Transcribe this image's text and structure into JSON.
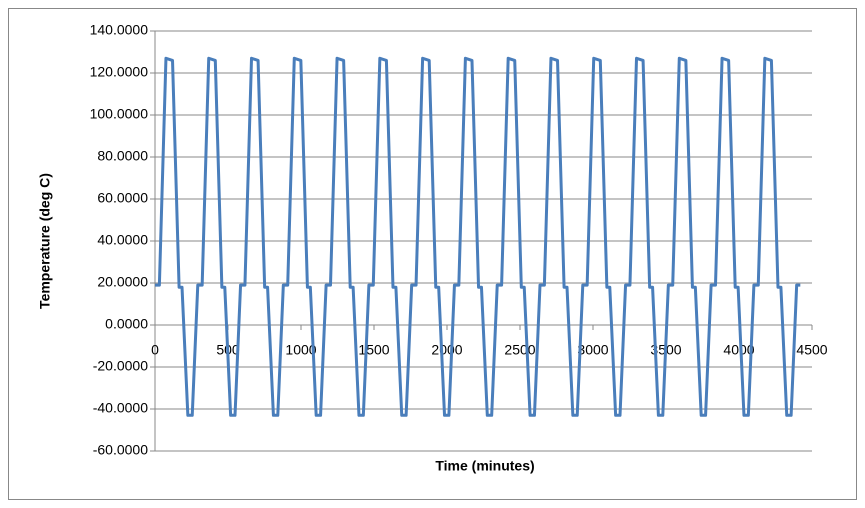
{
  "chart_data": {
    "type": "line",
    "xlabel": "Time (minutes)",
    "ylabel": "Temperature (deg C)",
    "color": "#4a7ebb",
    "grid": true,
    "xlim": [
      0,
      4500
    ],
    "xticks": [
      0,
      500,
      1000,
      1500,
      2000,
      2500,
      3000,
      3500,
      4000,
      4500
    ],
    "ylim": [
      -60,
      140
    ],
    "yticks": [
      {
        "value": -60,
        "label": "-60.0000"
      },
      {
        "value": -40,
        "label": "-40.0000"
      },
      {
        "value": -20,
        "label": "-20.0000"
      },
      {
        "value": 0,
        "label": "0.0000"
      },
      {
        "value": 20,
        "label": "20.0000"
      },
      {
        "value": 40,
        "label": "40.0000"
      },
      {
        "value": 60,
        "label": "60.0000"
      },
      {
        "value": 80,
        "label": "80.0000"
      },
      {
        "value": 100,
        "label": "100.0000"
      },
      {
        "value": 120,
        "label": "120.0000"
      },
      {
        "value": 140,
        "label": "140.0000"
      }
    ],
    "x": [
      0,
      30,
      75,
      120,
      165,
      185,
      225,
      255,
      293,
      323,
      368,
      413,
      458,
      478,
      518,
      548,
      586,
      616,
      661,
      706,
      751,
      771,
      811,
      841,
      879,
      909,
      954,
      999,
      1044,
      1064,
      1104,
      1134,
      1172,
      1202,
      1247,
      1292,
      1337,
      1357,
      1397,
      1427,
      1465,
      1495,
      1540,
      1585,
      1630,
      1650,
      1690,
      1720,
      1758,
      1788,
      1833,
      1878,
      1923,
      1943,
      1983,
      2013,
      2051,
      2081,
      2126,
      2171,
      2216,
      2236,
      2276,
      2306,
      2344,
      2374,
      2419,
      2464,
      2509,
      2529,
      2569,
      2599,
      2637,
      2667,
      2712,
      2757,
      2802,
      2822,
      2862,
      2892,
      2930,
      2960,
      3005,
      3050,
      3095,
      3115,
      3155,
      3185,
      3223,
      3253,
      3298,
      3343,
      3388,
      3408,
      3448,
      3478,
      3516,
      3546,
      3591,
      3636,
      3681,
      3701,
      3741,
      3771,
      3809,
      3839,
      3884,
      3929,
      3974,
      3994,
      4034,
      4064,
      4102,
      4132,
      4177,
      4222,
      4267,
      4287,
      4327,
      4357,
      4395,
      4420
    ],
    "values": [
      19,
      19,
      127,
      126,
      18,
      18,
      -43,
      -43,
      19,
      19,
      127,
      126,
      18,
      18,
      -43,
      -43,
      19,
      19,
      127,
      126,
      18,
      18,
      -43,
      -43,
      19,
      19,
      127,
      126,
      18,
      18,
      -43,
      -43,
      19,
      19,
      127,
      126,
      18,
      18,
      -43,
      -43,
      19,
      19,
      127,
      126,
      18,
      18,
      -43,
      -43,
      19,
      19,
      127,
      126,
      18,
      18,
      -43,
      -43,
      19,
      19,
      127,
      126,
      18,
      18,
      -43,
      -43,
      19,
      19,
      127,
      126,
      18,
      18,
      -43,
      -43,
      19,
      19,
      127,
      126,
      18,
      18,
      -43,
      -43,
      19,
      19,
      127,
      126,
      18,
      18,
      -43,
      -43,
      19,
      19,
      127,
      126,
      18,
      18,
      -43,
      -43,
      19,
      19,
      127,
      126,
      18,
      18,
      -43,
      -43,
      19,
      19,
      127,
      126,
      18,
      18,
      -43,
      -43,
      19,
      19,
      127,
      126,
      18,
      18,
      -43,
      -43,
      19,
      19
    ]
  }
}
